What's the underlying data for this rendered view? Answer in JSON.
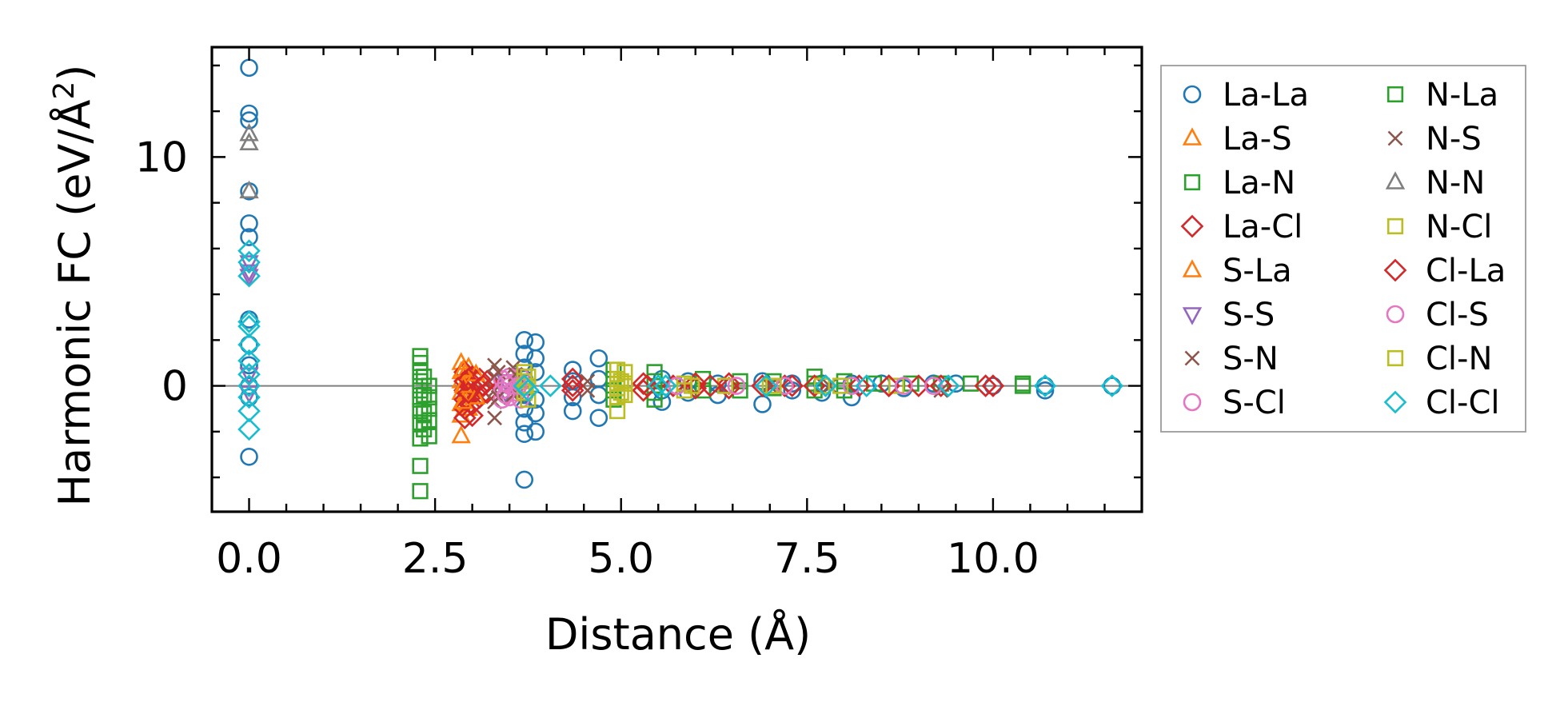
{
  "chart_data": {
    "type": "scatter",
    "title": "",
    "xlabel": "Distance (Å)",
    "ylabel": "Harmonic FC (eV/Å²)",
    "ylabel_base": "Harmonic FC (eV/Å",
    "ylabel_sup": "2",
    "ylabel_close": ")",
    "xlim": [
      -0.5,
      12.0
    ],
    "ylim": [
      -5.5,
      14.8
    ],
    "xticks": [
      0.0,
      2.5,
      5.0,
      7.5,
      10.0
    ],
    "xtick_labels": [
      "0.0",
      "2.5",
      "5.0",
      "7.5",
      "10.0"
    ],
    "yticks": [
      0,
      10
    ],
    "ytick_labels": [
      "0",
      "10"
    ],
    "zero_line": true,
    "grid": false,
    "legend_position": "outside-right",
    "series": [
      {
        "name": "La-La",
        "marker": "circle",
        "color": "#1f77b4",
        "points": [
          [
            0,
            13.9
          ],
          [
            0,
            11.9
          ],
          [
            0,
            11.6
          ],
          [
            0,
            8.5
          ],
          [
            0,
            7.1
          ],
          [
            0,
            6.5
          ],
          [
            0,
            2.9
          ],
          [
            0,
            1.8
          ],
          [
            0,
            0.9
          ],
          [
            0,
            0
          ],
          [
            0,
            -0.5
          ],
          [
            0,
            -3.1
          ],
          [
            3.7,
            2.0
          ],
          [
            3.7,
            1.4
          ],
          [
            3.7,
            0.8
          ],
          [
            3.7,
            0.3
          ],
          [
            3.7,
            -0.4
          ],
          [
            3.7,
            -1.0
          ],
          [
            3.7,
            -1.6
          ],
          [
            3.7,
            -2.1
          ],
          [
            3.7,
            -4.1
          ],
          [
            3.85,
            1.9
          ],
          [
            3.85,
            1.2
          ],
          [
            3.85,
            0.6
          ],
          [
            3.85,
            -0.6
          ],
          [
            3.85,
            -1.2
          ],
          [
            3.85,
            -2.0
          ],
          [
            4.35,
            0.7
          ],
          [
            4.35,
            0.2
          ],
          [
            4.35,
            -0.5
          ],
          [
            4.35,
            -1.1
          ],
          [
            4.7,
            1.2
          ],
          [
            4.7,
            0.3
          ],
          [
            4.7,
            -0.4
          ],
          [
            4.7,
            -1.4
          ],
          [
            5.55,
            -0.2
          ],
          [
            5.55,
            0.3
          ],
          [
            5.55,
            -0.7
          ],
          [
            5.9,
            0.2
          ],
          [
            5.9,
            -0.3
          ],
          [
            6.3,
            0.1
          ],
          [
            6.3,
            -0.4
          ],
          [
            6.9,
            0.2
          ],
          [
            6.9,
            -0.8
          ],
          [
            7.3,
            0.1
          ],
          [
            7.3,
            -0.2
          ],
          [
            7.7,
            0.1
          ],
          [
            7.7,
            -0.3
          ],
          [
            8.1,
            0.1
          ],
          [
            8.1,
            -0.5
          ],
          [
            8.5,
            0.1
          ],
          [
            8.8,
            -0.1
          ],
          [
            9.2,
            0.1
          ],
          [
            9.5,
            0.1
          ],
          [
            10.0,
            0.0
          ],
          [
            10.7,
            0.0
          ],
          [
            10.7,
            -0.2
          ],
          [
            11.6,
            0.0
          ]
        ]
      },
      {
        "name": "La-S",
        "marker": "triangle-up",
        "color": "#ff7f0e",
        "points": [
          [
            2.85,
            1.0
          ],
          [
            2.85,
            0.6
          ],
          [
            2.85,
            0.2
          ],
          [
            2.85,
            -0.3
          ],
          [
            2.85,
            -0.8
          ],
          [
            2.85,
            -1.3
          ],
          [
            2.85,
            -2.2
          ],
          [
            2.95,
            0.8
          ],
          [
            2.95,
            0.3
          ],
          [
            2.95,
            -0.4
          ],
          [
            2.95,
            -1.0
          ]
        ]
      },
      {
        "name": "La-N",
        "marker": "square",
        "color": "#2ca02c",
        "points": [
          [
            2.3,
            1.3
          ],
          [
            2.3,
            1.0
          ],
          [
            2.3,
            0.6
          ],
          [
            2.3,
            0.2
          ],
          [
            2.3,
            -0.2
          ],
          [
            2.3,
            -0.6
          ],
          [
            2.3,
            -1.1
          ],
          [
            2.3,
            -1.6
          ],
          [
            2.3,
            -2.3
          ],
          [
            2.3,
            -3.5
          ],
          [
            2.3,
            -4.6
          ],
          [
            2.42,
            0.0
          ],
          [
            2.42,
            -0.5
          ],
          [
            2.42,
            -1.0
          ],
          [
            2.42,
            -1.5
          ],
          [
            2.42,
            -2.2
          ],
          [
            4.9,
            0.7
          ],
          [
            4.9,
            0.3
          ],
          [
            4.9,
            -0.2
          ],
          [
            4.9,
            -0.6
          ],
          [
            5.45,
            0.6
          ],
          [
            5.45,
            0.2
          ],
          [
            5.45,
            -0.3
          ],
          [
            5.45,
            -0.6
          ],
          [
            6.1,
            0.3
          ],
          [
            6.1,
            -0.2
          ],
          [
            6.6,
            0.2
          ],
          [
            6.6,
            -0.2
          ],
          [
            7.05,
            0.2
          ],
          [
            7.05,
            -0.1
          ],
          [
            7.6,
            0.4
          ],
          [
            7.6,
            0.1
          ],
          [
            7.6,
            -0.2
          ],
          [
            8.0,
            0.2
          ],
          [
            8.0,
            -0.2
          ],
          [
            8.4,
            0.1
          ],
          [
            8.9,
            0.1
          ],
          [
            9.3,
            0.1
          ],
          [
            9.7,
            0.1
          ],
          [
            10.4,
            0.1
          ],
          [
            10.4,
            0.0
          ]
        ]
      },
      {
        "name": "La-Cl",
        "marker": "diamond",
        "color": "#d62728",
        "points": [
          [
            2.9,
            0.6
          ],
          [
            2.9,
            0.2
          ],
          [
            2.9,
            -0.2
          ],
          [
            2.9,
            -0.6
          ],
          [
            2.9,
            -1.0
          ],
          [
            2.9,
            -1.4
          ],
          [
            3.0,
            0.4
          ],
          [
            3.0,
            0.0
          ],
          [
            3.0,
            -0.4
          ],
          [
            3.0,
            -0.8
          ],
          [
            3.0,
            -1.3
          ],
          [
            3.1,
            0.3
          ],
          [
            3.1,
            -0.1
          ],
          [
            3.1,
            -0.5
          ],
          [
            3.2,
            0.2
          ],
          [
            3.2,
            -0.3
          ],
          [
            4.35,
            0.3
          ],
          [
            4.35,
            -0.2
          ],
          [
            5.3,
            0.1
          ],
          [
            5.3,
            -0.2
          ],
          [
            5.7,
            0.0
          ],
          [
            6.0,
            0.1
          ],
          [
            6.0,
            -0.1
          ],
          [
            6.45,
            0.1
          ],
          [
            6.45,
            -0.1
          ],
          [
            6.9,
            0.0
          ],
          [
            7.2,
            0.0
          ],
          [
            7.6,
            0.0
          ],
          [
            8.2,
            0.0
          ],
          [
            8.6,
            0.0
          ],
          [
            9.0,
            0.0
          ],
          [
            9.3,
            0.0
          ],
          [
            10.0,
            0.0
          ]
        ]
      },
      {
        "name": "S-La",
        "marker": "triangle-up",
        "color": "#ff7f0e",
        "points": [
          [
            2.88,
            0.7
          ],
          [
            2.88,
            0.0
          ],
          [
            2.88,
            -0.7
          ],
          [
            3.05,
            0.5
          ],
          [
            3.05,
            -0.5
          ]
        ]
      },
      {
        "name": "S-S",
        "marker": "triangle-down",
        "color": "#9467bd",
        "points": [
          [
            0,
            5.4
          ],
          [
            0,
            5.0
          ],
          [
            0,
            4.8
          ],
          [
            0,
            0.5
          ],
          [
            0,
            -0.3
          ],
          [
            3.45,
            0.2
          ],
          [
            3.45,
            -0.3
          ],
          [
            3.6,
            0.1
          ],
          [
            3.6,
            -0.2
          ]
        ]
      },
      {
        "name": "S-N",
        "marker": "x",
        "color": "#8c564b",
        "points": [
          [
            3.3,
            0.9
          ],
          [
            3.3,
            0.4
          ],
          [
            3.3,
            -0.2
          ],
          [
            3.3,
            -0.7
          ],
          [
            3.3,
            -1.4
          ],
          [
            3.55,
            0.8
          ],
          [
            3.55,
            0.2
          ],
          [
            3.55,
            -0.4
          ],
          [
            4.55,
            0.2
          ],
          [
            4.55,
            -0.2
          ],
          [
            7.0,
            0.0
          ],
          [
            7.8,
            0.0
          ],
          [
            9.3,
            -0.2
          ]
        ]
      },
      {
        "name": "S-Cl",
        "marker": "circle",
        "color": "#e377c2",
        "points": [
          [
            3.4,
            0.3
          ],
          [
            3.4,
            -0.2
          ],
          [
            3.4,
            -0.6
          ],
          [
            3.5,
            0.4
          ],
          [
            3.5,
            0.0
          ],
          [
            3.5,
            -0.5
          ],
          [
            3.6,
            0.2
          ],
          [
            3.6,
            -0.3
          ],
          [
            3.65,
            0.4
          ],
          [
            3.65,
            -0.6
          ]
        ]
      },
      {
        "name": "N-La",
        "marker": "square",
        "color": "#2ca02c",
        "points": [
          [
            2.35,
            0.4
          ],
          [
            2.35,
            -0.4
          ],
          [
            2.35,
            -1.2
          ],
          [
            2.35,
            -1.9
          ]
        ]
      },
      {
        "name": "N-S",
        "marker": "x",
        "color": "#8c564b",
        "points": [
          [
            3.35,
            0.6
          ],
          [
            3.35,
            -0.5
          ],
          [
            3.58,
            0.5
          ],
          [
            3.58,
            -0.3
          ]
        ]
      },
      {
        "name": "N-N",
        "marker": "triangle-up",
        "color": "#7f7f7f",
        "points": [
          [
            0,
            11.0
          ],
          [
            0,
            10.6
          ],
          [
            0,
            8.5
          ]
        ]
      },
      {
        "name": "N-Cl",
        "marker": "square",
        "color": "#bcbd22",
        "points": [
          [
            3.7,
            0.6
          ],
          [
            3.7,
            0.2
          ],
          [
            3.7,
            -0.3
          ],
          [
            3.75,
            0.4
          ],
          [
            3.75,
            -0.6
          ],
          [
            4.95,
            0.7
          ],
          [
            4.95,
            0.3
          ],
          [
            4.95,
            -0.1
          ],
          [
            4.95,
            -0.5
          ],
          [
            4.95,
            -1.1
          ],
          [
            5.05,
            0.6
          ],
          [
            5.05,
            0.1
          ],
          [
            5.05,
            -0.4
          ],
          [
            5.85,
            0.1
          ],
          [
            5.85,
            -0.2
          ],
          [
            6.4,
            0.0
          ],
          [
            7.0,
            0.0
          ],
          [
            7.7,
            0.0
          ],
          [
            8.7,
            0.0
          ]
        ]
      },
      {
        "name": "Cl-La",
        "marker": "diamond",
        "color": "#d62728",
        "points": [
          [
            2.95,
            0.3
          ],
          [
            2.95,
            -0.3
          ],
          [
            3.15,
            0.0
          ],
          [
            4.35,
            0.0
          ],
          [
            5.35,
            0.0
          ],
          [
            6.2,
            0.0
          ],
          [
            7.3,
            0.0
          ],
          [
            8.6,
            0.0
          ],
          [
            9.9,
            0.0
          ]
        ]
      },
      {
        "name": "Cl-S",
        "marker": "circle",
        "color": "#e377c2",
        "points": [
          [
            3.45,
            0.1
          ],
          [
            3.45,
            -0.4
          ],
          [
            3.62,
            0.0
          ],
          [
            5.75,
            0.0
          ],
          [
            6.55,
            0.0
          ],
          [
            7.2,
            0.0
          ],
          [
            8.1,
            0.0
          ],
          [
            8.8,
            0.0
          ],
          [
            9.2,
            0.0
          ]
        ]
      },
      {
        "name": "Cl-N",
        "marker": "square",
        "color": "#bcbd22",
        "points": [
          [
            3.72,
            0.0
          ],
          [
            5.0,
            0.2
          ],
          [
            5.0,
            -0.3
          ],
          [
            5.95,
            0.0
          ],
          [
            7.05,
            0.0
          ],
          [
            7.95,
            0.0
          ]
        ]
      },
      {
        "name": "Cl-Cl",
        "marker": "diamond",
        "color": "#17becf",
        "points": [
          [
            0,
            5.9
          ],
          [
            0,
            5.4
          ],
          [
            0,
            4.8
          ],
          [
            0,
            2.8
          ],
          [
            0,
            2.6
          ],
          [
            0,
            1.8
          ],
          [
            0,
            1.1
          ],
          [
            0,
            0.5
          ],
          [
            0,
            0.0
          ],
          [
            0,
            -0.5
          ],
          [
            0,
            -1.1
          ],
          [
            0,
            -1.9
          ],
          [
            3.7,
            0.0
          ],
          [
            3.75,
            -0.2
          ],
          [
            4.05,
            0.0
          ],
          [
            5.5,
            0.0
          ],
          [
            5.6,
            0.0
          ],
          [
            6.95,
            0.0
          ],
          [
            7.75,
            0.0
          ],
          [
            8.3,
            0.0
          ],
          [
            9.4,
            0.0
          ],
          [
            10.7,
            0.0
          ],
          [
            11.6,
            0.0
          ]
        ]
      }
    ]
  }
}
